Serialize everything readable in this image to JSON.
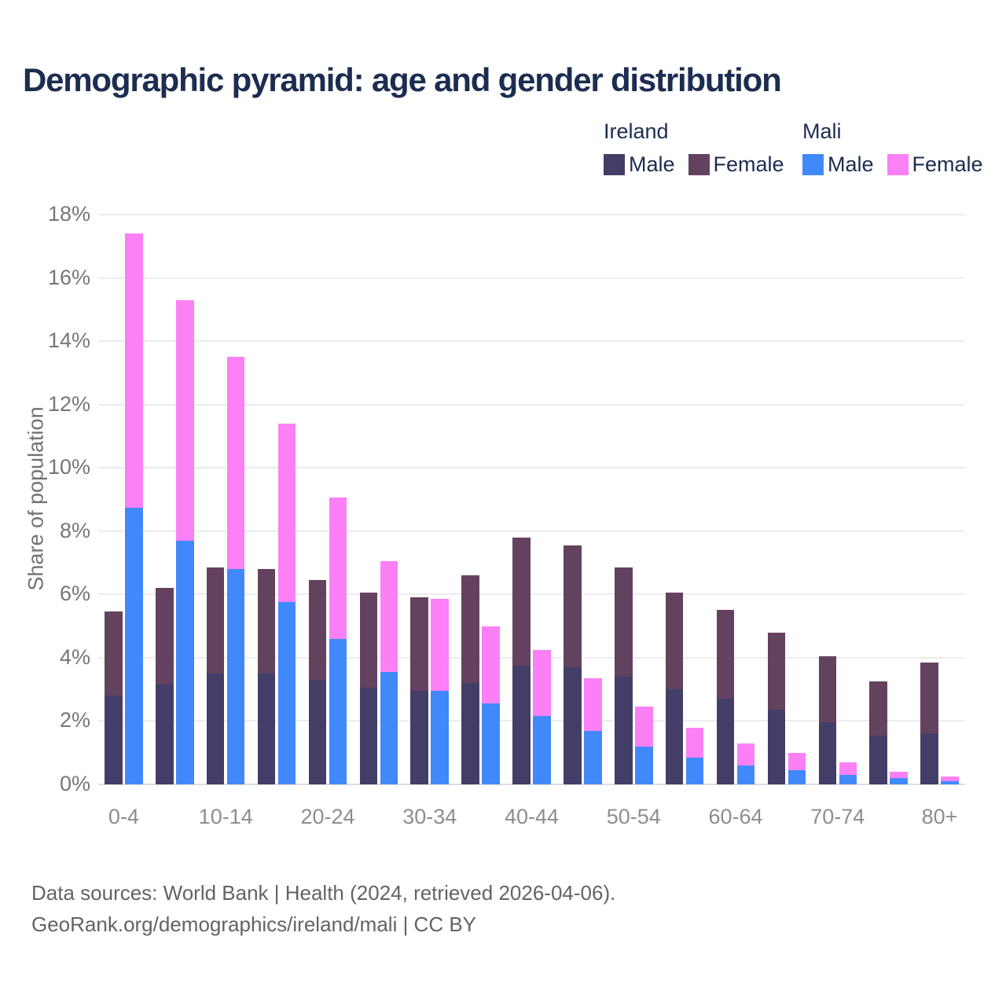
{
  "title": "Demographic pyramid: age and gender distribution",
  "legend": {
    "groups": [
      {
        "title": "Ireland",
        "items": [
          {
            "label": "Male",
            "series_index": 0
          },
          {
            "label": "Female",
            "series_index": 1
          }
        ]
      },
      {
        "title": "Mali",
        "items": [
          {
            "label": "Male",
            "series_index": 2
          },
          {
            "label": "Female",
            "series_index": 3
          }
        ]
      }
    ]
  },
  "chart_data": {
    "type": "bar",
    "stacked": true,
    "title": "Demographic pyramid: age and gender distribution",
    "xlabel": "",
    "ylabel": "Share of population",
    "ylim": [
      0,
      18
    ],
    "ytick_step": 2,
    "ytick_labels": [
      "0%",
      "2%",
      "4%",
      "6%",
      "8%",
      "10%",
      "12%",
      "14%",
      "16%",
      "18%"
    ],
    "grid": true,
    "legend_position": "top-right",
    "categories": [
      "0-4",
      "5-9",
      "10-14",
      "15-19",
      "20-24",
      "25-29",
      "30-34",
      "35-39",
      "40-44",
      "45-49",
      "50-54",
      "55-59",
      "60-64",
      "65-69",
      "70-74",
      "75-79",
      "80+"
    ],
    "x_tick_labels": [
      "0-4",
      "10-14",
      "20-24",
      "30-34",
      "40-44",
      "50-54",
      "60-64",
      "70-74",
      "80+"
    ],
    "x_tick_every": 2,
    "unit": "% of population",
    "series": [
      {
        "name": "Ireland Male",
        "stack": "ireland",
        "color": "#423E68",
        "values": [
          2.8,
          3.15,
          3.5,
          3.5,
          3.3,
          3.05,
          2.95,
          3.2,
          3.75,
          3.7,
          3.4,
          3.0,
          2.7,
          2.35,
          1.95,
          1.55,
          1.6
        ]
      },
      {
        "name": "Ireland Female",
        "stack": "ireland",
        "color": "#63425F",
        "values": [
          2.65,
          3.05,
          3.35,
          3.3,
          3.15,
          3.0,
          2.95,
          3.4,
          4.05,
          3.85,
          3.45,
          3.05,
          2.8,
          2.45,
          2.1,
          1.7,
          2.25
        ]
      },
      {
        "name": "Mali Male",
        "stack": "mali",
        "color": "#4189FB",
        "values": [
          8.75,
          7.7,
          6.8,
          5.75,
          4.6,
          3.55,
          2.95,
          2.55,
          2.15,
          1.7,
          1.2,
          0.85,
          0.6,
          0.45,
          0.3,
          0.2,
          0.1
        ]
      },
      {
        "name": "Mali Female",
        "stack": "mali",
        "color": "#FC80F5",
        "values": [
          8.65,
          7.6,
          6.7,
          5.65,
          4.45,
          3.5,
          2.9,
          2.45,
          2.1,
          1.65,
          1.25,
          0.95,
          0.7,
          0.55,
          0.4,
          0.2,
          0.15
        ]
      }
    ]
  },
  "footer": {
    "line1": "Data sources: World Bank | Health (2024, retrieved 2026-04-06).",
    "line2": "GeoRank.org/demographics/ireland/mali | CC BY"
  }
}
